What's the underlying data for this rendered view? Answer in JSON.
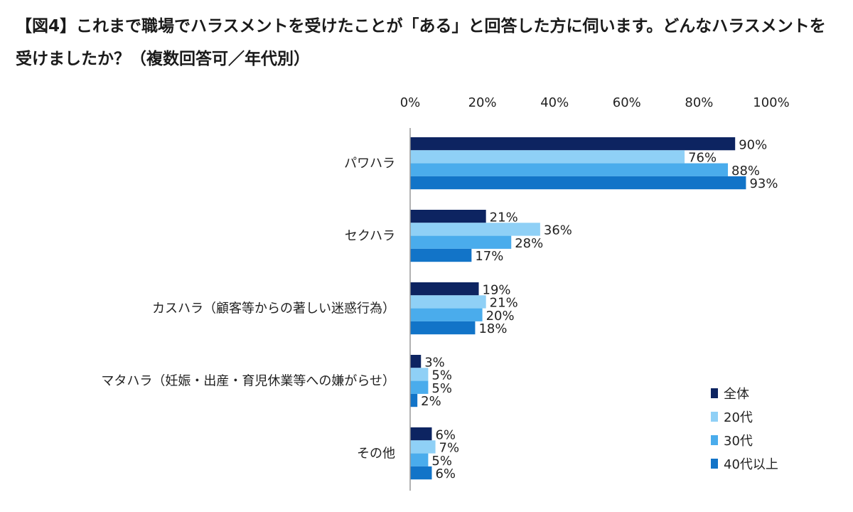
{
  "title": "【図4】これまで職場でハラスメントを受けたことが「ある」と回答した方に伺います。どんなハラスメントを受けましたか？（複数回答可／年代別）",
  "chart_data": {
    "type": "bar",
    "orientation": "horizontal",
    "title": "【図4】これまで職場でハラスメントを受けたことが「ある」と回答した方に伺います。どんなハラスメントを受けましたか？（複数回答可／年代別）",
    "categories": [
      "パワハラ",
      "セクハラ",
      "カスハラ（顧客等からの著しい迷惑行為）",
      "マタハラ（妊娠・出産・育児休業等への嫌がらせ）",
      "その他"
    ],
    "series": [
      {
        "name": "全体",
        "color": "#0d2461",
        "values": [
          90,
          21,
          19,
          3,
          6
        ]
      },
      {
        "name": "20代",
        "color": "#8fd0f6",
        "values": [
          76,
          36,
          21,
          5,
          7
        ]
      },
      {
        "name": "30代",
        "color": "#4aacec",
        "values": [
          88,
          28,
          20,
          5,
          5
        ]
      },
      {
        "name": "40代以上",
        "color": "#1274c8",
        "values": [
          93,
          17,
          18,
          2,
          6
        ]
      }
    ],
    "xlim": [
      0,
      100
    ],
    "xticks": [
      0,
      20,
      40,
      60,
      80,
      100
    ],
    "tick_labels": [
      "0%",
      "20%",
      "40%",
      "60%",
      "80%",
      "100%"
    ],
    "value_suffix": "%",
    "axis_position": "top",
    "grid": false,
    "legend_position": "bottom-right"
  }
}
